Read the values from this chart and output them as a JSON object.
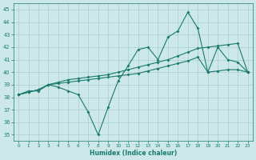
{
  "x": [
    0,
    1,
    2,
    3,
    4,
    5,
    6,
    7,
    8,
    9,
    10,
    11,
    12,
    13,
    14,
    15,
    16,
    17,
    18,
    19,
    20,
    21,
    22,
    23
  ],
  "line_zigzag": [
    38.2,
    38.5,
    38.5,
    39.0,
    38.8,
    38.5,
    38.2,
    36.8,
    35.0,
    37.2,
    39.3,
    40.5,
    41.8,
    42.0,
    41.0,
    42.8,
    43.3,
    44.8,
    43.5,
    40.0,
    42.0,
    41.0,
    40.8,
    40.0
  ],
  "line_trend1": [
    38.2,
    38.4,
    38.6,
    39.0,
    39.2,
    39.4,
    39.5,
    39.6,
    39.7,
    39.8,
    40.0,
    40.2,
    40.4,
    40.6,
    40.8,
    41.0,
    41.3,
    41.6,
    41.9,
    42.0,
    42.1,
    42.2,
    42.3,
    40.0
  ],
  "line_trend2": [
    38.2,
    38.4,
    38.6,
    39.0,
    39.1,
    39.2,
    39.3,
    39.4,
    39.5,
    39.6,
    39.7,
    39.8,
    39.9,
    40.1,
    40.3,
    40.5,
    40.7,
    40.9,
    41.2,
    40.0,
    40.1,
    40.2,
    40.2,
    40.0
  ],
  "bg_color": "#cde8e8",
  "grid_color": "#aacece",
  "line_color": "#1a7a6e",
  "xlabel": "Humidex (Indice chaleur)",
  "xlim": [
    -0.5,
    23.5
  ],
  "ylim": [
    34.5,
    45.5
  ],
  "yticks": [
    35,
    36,
    37,
    38,
    39,
    40,
    41,
    42,
    43,
    44,
    45
  ],
  "xticks": [
    0,
    1,
    2,
    3,
    4,
    5,
    6,
    7,
    8,
    9,
    10,
    11,
    12,
    13,
    14,
    15,
    16,
    17,
    18,
    19,
    20,
    21,
    22,
    23
  ]
}
